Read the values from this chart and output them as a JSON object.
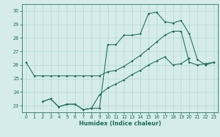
{
  "xlabel": "Humidex (Indice chaleur)",
  "background_color": "#d5ecea",
  "grid_color": "#b0d4d0",
  "line_color": "#1a6b5a",
  "x": [
    0,
    1,
    2,
    3,
    4,
    5,
    6,
    7,
    8,
    9,
    10,
    11,
    12,
    13,
    14,
    15,
    16,
    17,
    18,
    19,
    20,
    21,
    22,
    23
  ],
  "line1": [
    26.2,
    25.2,
    25.2,
    25.2,
    25.2,
    25.2,
    25.2,
    25.2,
    25.2,
    25.2,
    25.5,
    25.6,
    25.9,
    26.3,
    26.7,
    27.2,
    27.7,
    28.2,
    28.5,
    28.5,
    26.2,
    26.0,
    26.1,
    26.2
  ],
  "line2": [
    null,
    null,
    23.3,
    23.5,
    22.9,
    23.1,
    23.1,
    22.7,
    22.8,
    22.8,
    27.5,
    27.5,
    28.2,
    28.2,
    28.3,
    29.8,
    29.9,
    29.2,
    29.1,
    29.3,
    28.3,
    26.4,
    26.0,
    26.2
  ],
  "line3": [
    null,
    null,
    23.3,
    23.5,
    22.9,
    23.1,
    23.1,
    22.7,
    22.8,
    23.8,
    24.3,
    24.6,
    24.9,
    25.3,
    25.6,
    26.0,
    26.3,
    26.6,
    26.0,
    26.1,
    26.5,
    null,
    null,
    null
  ],
  "ylim": [
    22.5,
    30.5
  ],
  "yticks": [
    23,
    24,
    25,
    26,
    27,
    28,
    29,
    30
  ],
  "xticks": [
    0,
    1,
    2,
    3,
    4,
    5,
    6,
    7,
    8,
    9,
    10,
    11,
    12,
    13,
    14,
    15,
    16,
    17,
    18,
    19,
    20,
    21,
    22,
    23
  ]
}
